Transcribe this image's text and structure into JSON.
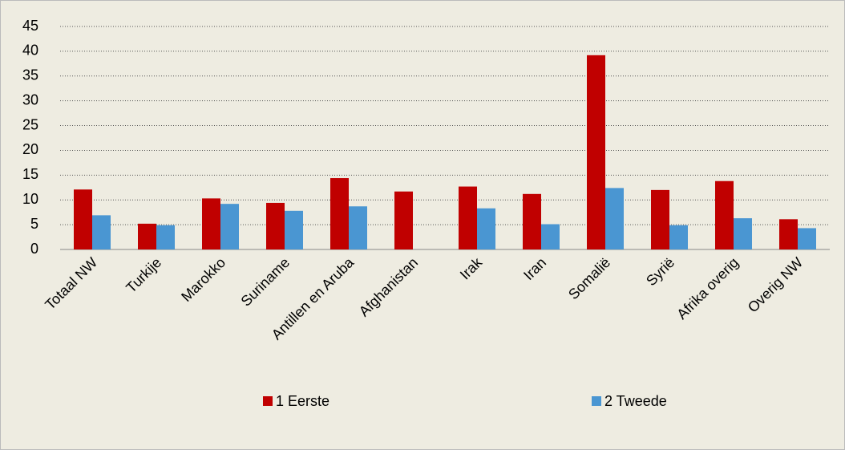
{
  "chart_data": {
    "type": "bar",
    "categories": [
      "Totaal NW",
      "Turkije",
      "Marokko",
      "Suriname",
      "Antillen en Aruba",
      "Afghanistan",
      "Irak",
      "Iran",
      "Somalië",
      "Syrië",
      "Afrika overig",
      "Overig NW"
    ],
    "series": [
      {
        "name": "1 Eerste",
        "color": "#c00000",
        "values": [
          12.1,
          5.2,
          10.3,
          9.4,
          14.4,
          11.7,
          12.7,
          11.2,
          39.2,
          12.0,
          13.8,
          6.1
        ]
      },
      {
        "name": "2 Tweede",
        "color": "#4a96d2",
        "values": [
          6.9,
          4.9,
          9.2,
          7.8,
          8.7,
          null,
          8.3,
          5.1,
          12.4,
          4.9,
          6.3,
          4.3
        ]
      }
    ],
    "ylim": [
      0,
      45
    ],
    "yticks": [
      0,
      5,
      10,
      15,
      20,
      25,
      30,
      35,
      40,
      45
    ],
    "grid": true,
    "legend": "bottom"
  }
}
